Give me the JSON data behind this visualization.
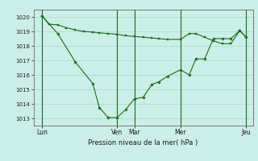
{
  "background_color": "#cceee8",
  "grid_color": "#aaddcc",
  "line_color": "#1a6b1a",
  "marker_color": "#1a6b1a",
  "xlabel": "Pression niveau de la mer( hPa )",
  "ylim": [
    1012.5,
    1020.5
  ],
  "yticks": [
    1013,
    1014,
    1015,
    1016,
    1017,
    1018,
    1019,
    1020
  ],
  "vline_positions": [
    0.04,
    0.38,
    0.46,
    0.67,
    0.97
  ],
  "xtick_positions": [
    0.04,
    0.38,
    0.46,
    0.67,
    0.97
  ],
  "xtick_labels": [
    "Lun",
    "Ven",
    "Mar",
    "Mer",
    "Jeu"
  ],
  "series1_x": [
    0.04,
    0.07,
    0.11,
    0.15,
    0.19,
    0.23,
    0.27,
    0.3,
    0.34,
    0.38,
    0.42,
    0.46,
    0.5,
    0.54,
    0.57,
    0.61,
    0.67,
    0.71,
    0.74,
    0.78,
    0.82,
    0.86,
    0.9,
    0.94,
    0.97
  ],
  "series1_y": [
    1020.05,
    1019.5,
    1019.45,
    1019.25,
    1019.1,
    1019.0,
    1018.95,
    1018.9,
    1018.85,
    1018.8,
    1018.7,
    1018.65,
    1018.6,
    1018.55,
    1018.5,
    1018.45,
    1018.45,
    1018.85,
    1018.85,
    1018.6,
    1018.35,
    1018.15,
    1018.15,
    1019.05,
    1018.6
  ],
  "series2_x": [
    0.04,
    0.11,
    0.19,
    0.27,
    0.3,
    0.34,
    0.38,
    0.42,
    0.46,
    0.5,
    0.54,
    0.57,
    0.61,
    0.67,
    0.71,
    0.74,
    0.78,
    0.82,
    0.86,
    0.9,
    0.94,
    0.97
  ],
  "series2_y": [
    1020.05,
    1018.85,
    1016.9,
    1015.4,
    1013.75,
    1013.05,
    1013.05,
    1013.6,
    1014.35,
    1014.45,
    1015.35,
    1015.5,
    1015.9,
    1016.35,
    1016.0,
    1017.1,
    1017.1,
    1018.5,
    1018.5,
    1018.5,
    1019.05,
    1018.6
  ]
}
